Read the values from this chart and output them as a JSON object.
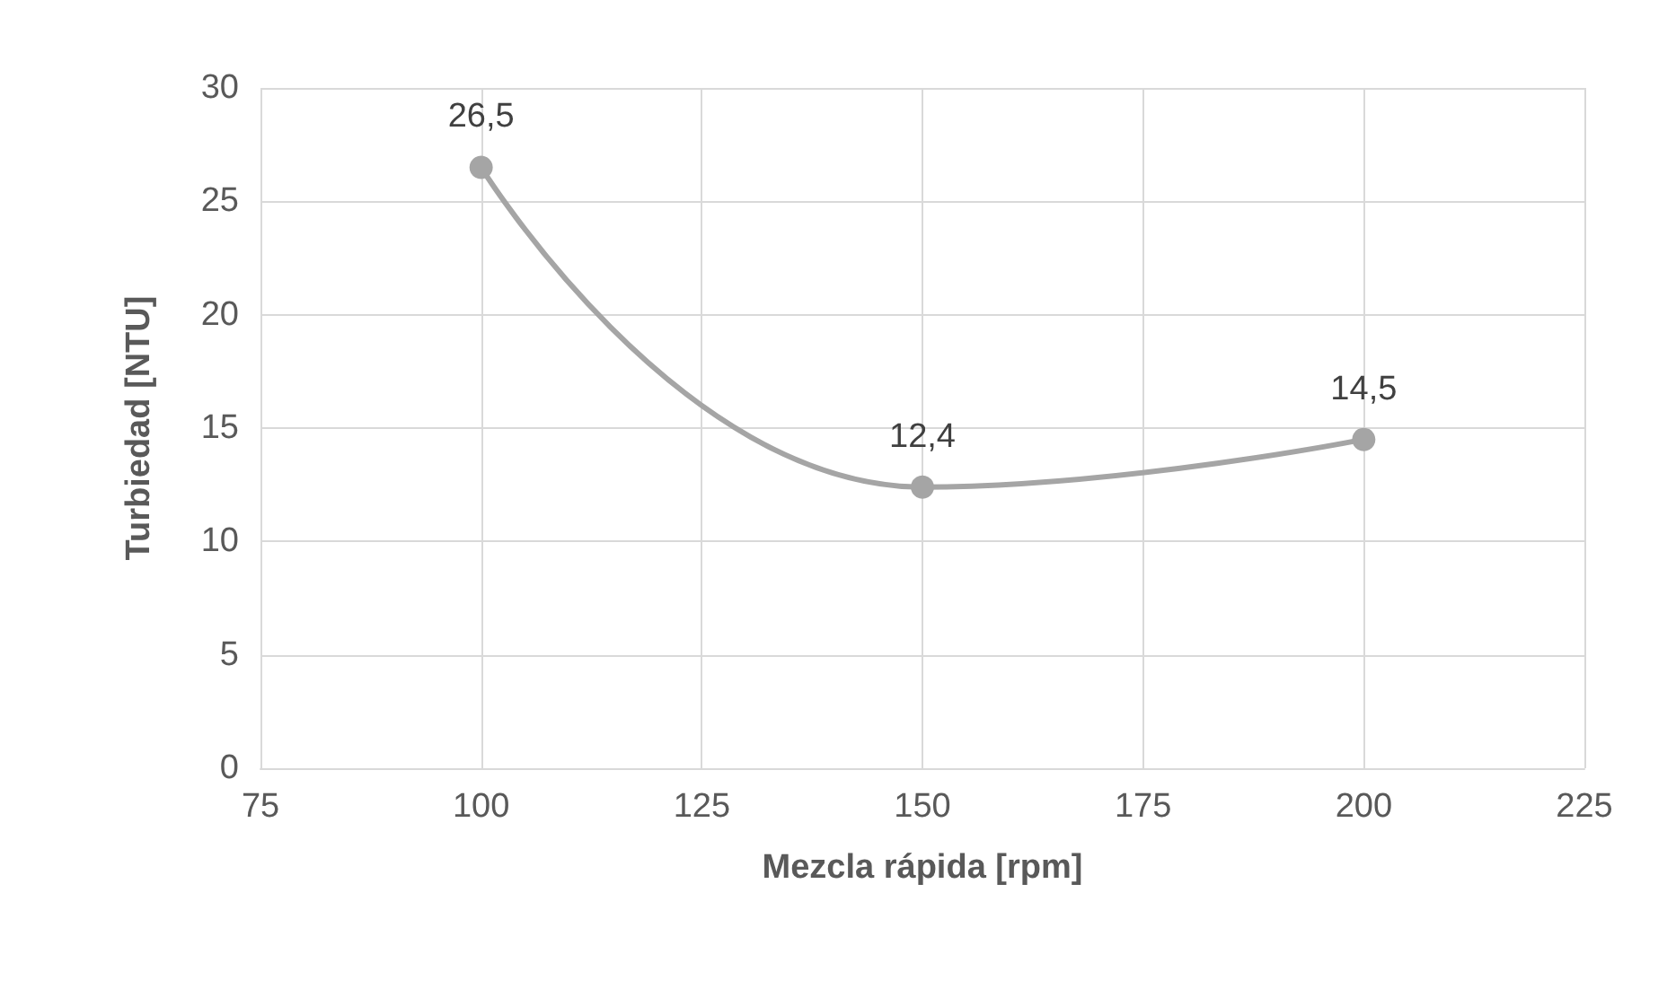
{
  "chart_data": {
    "type": "line",
    "xlabel": "Mezcla rápida [rpm]",
    "ylabel": "Turbiedad [NTU]",
    "x": [
      100,
      150,
      200
    ],
    "series": [
      {
        "color": "#a5a5a5",
        "values": [
          26.5,
          12.4,
          14.5
        ],
        "value_labels": [
          "26,5",
          "12,4",
          "14,5"
        ]
      }
    ],
    "xlim": [
      75,
      225
    ],
    "xticks": [
      75,
      100,
      125,
      150,
      175,
      200,
      225
    ],
    "ylim": [
      0,
      30
    ],
    "yticks": [
      0,
      5,
      10,
      15,
      20,
      25,
      30
    ],
    "grid": true,
    "marker": "circle",
    "line_style": "solid"
  }
}
